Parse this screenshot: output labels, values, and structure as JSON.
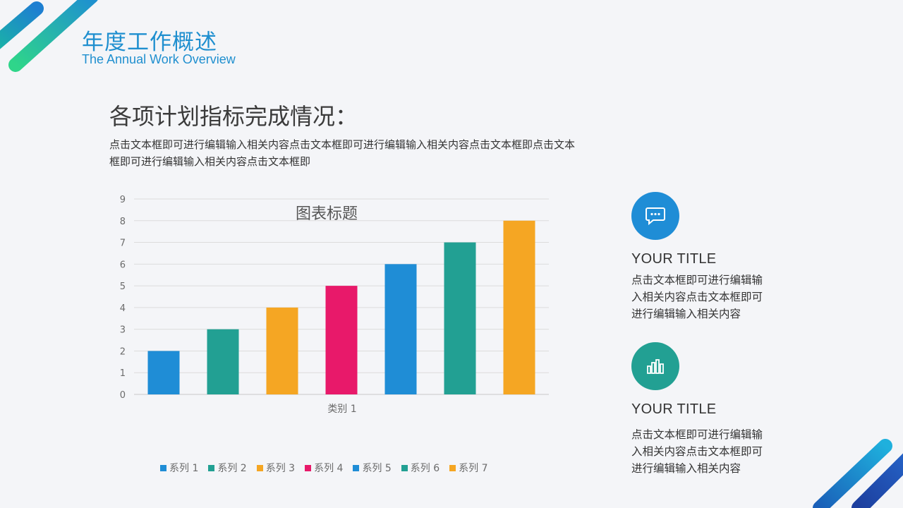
{
  "header": {
    "title": "年度工作概述",
    "subtitle": "The Annual Work Overview"
  },
  "section": {
    "heading": "各项计划指标完成情况：",
    "body": "点击文本框即可进行编辑输入相关内容点击文本框即可进行编辑输入相关内容点击文本框即点击文本框即可进行编辑输入相关内容点击文本框即"
  },
  "colors": {
    "blue": "#1f8dd6",
    "teal": "#22a093",
    "orange": "#f5a623",
    "pink": "#e8196a",
    "title_blue": "#1f8fcf"
  },
  "chart_data": {
    "type": "bar",
    "title": "图表标题",
    "categories": [
      "类别 1"
    ],
    "series": [
      {
        "name": "系列 1",
        "values": [
          2
        ],
        "color": "#1f8dd6"
      },
      {
        "name": "系列 2",
        "values": [
          3
        ],
        "color": "#22a093"
      },
      {
        "name": "系列 3",
        "values": [
          4
        ],
        "color": "#f5a623"
      },
      {
        "name": "系列 4",
        "values": [
          5
        ],
        "color": "#e8196a"
      },
      {
        "name": "系列 5",
        "values": [
          6
        ],
        "color": "#1f8dd6"
      },
      {
        "name": "系列 6",
        "values": [
          7
        ],
        "color": "#22a093"
      },
      {
        "name": "系列 7",
        "values": [
          8
        ],
        "color": "#f5a623"
      }
    ],
    "ylim": [
      0,
      9
    ],
    "yticks": [
      "0",
      "1",
      "2",
      "3",
      "4",
      "5",
      "6",
      "7",
      "8",
      "9"
    ],
    "grid": true,
    "legend": "bottom"
  },
  "cards": [
    {
      "icon": "chat-bubble-icon",
      "color": "#1f8dd6",
      "title": "YOUR TITLE",
      "text": "点击文本框即可进行编辑输入相关内容点击文本框即可进行编辑输入相关内容"
    },
    {
      "icon": "bar-chart-icon",
      "color": "#22a093",
      "title": "YOUR TITLE",
      "text": "点击文本框即可进行编辑输入相关内容点击文本框即可进行编辑输入相关内容"
    }
  ]
}
